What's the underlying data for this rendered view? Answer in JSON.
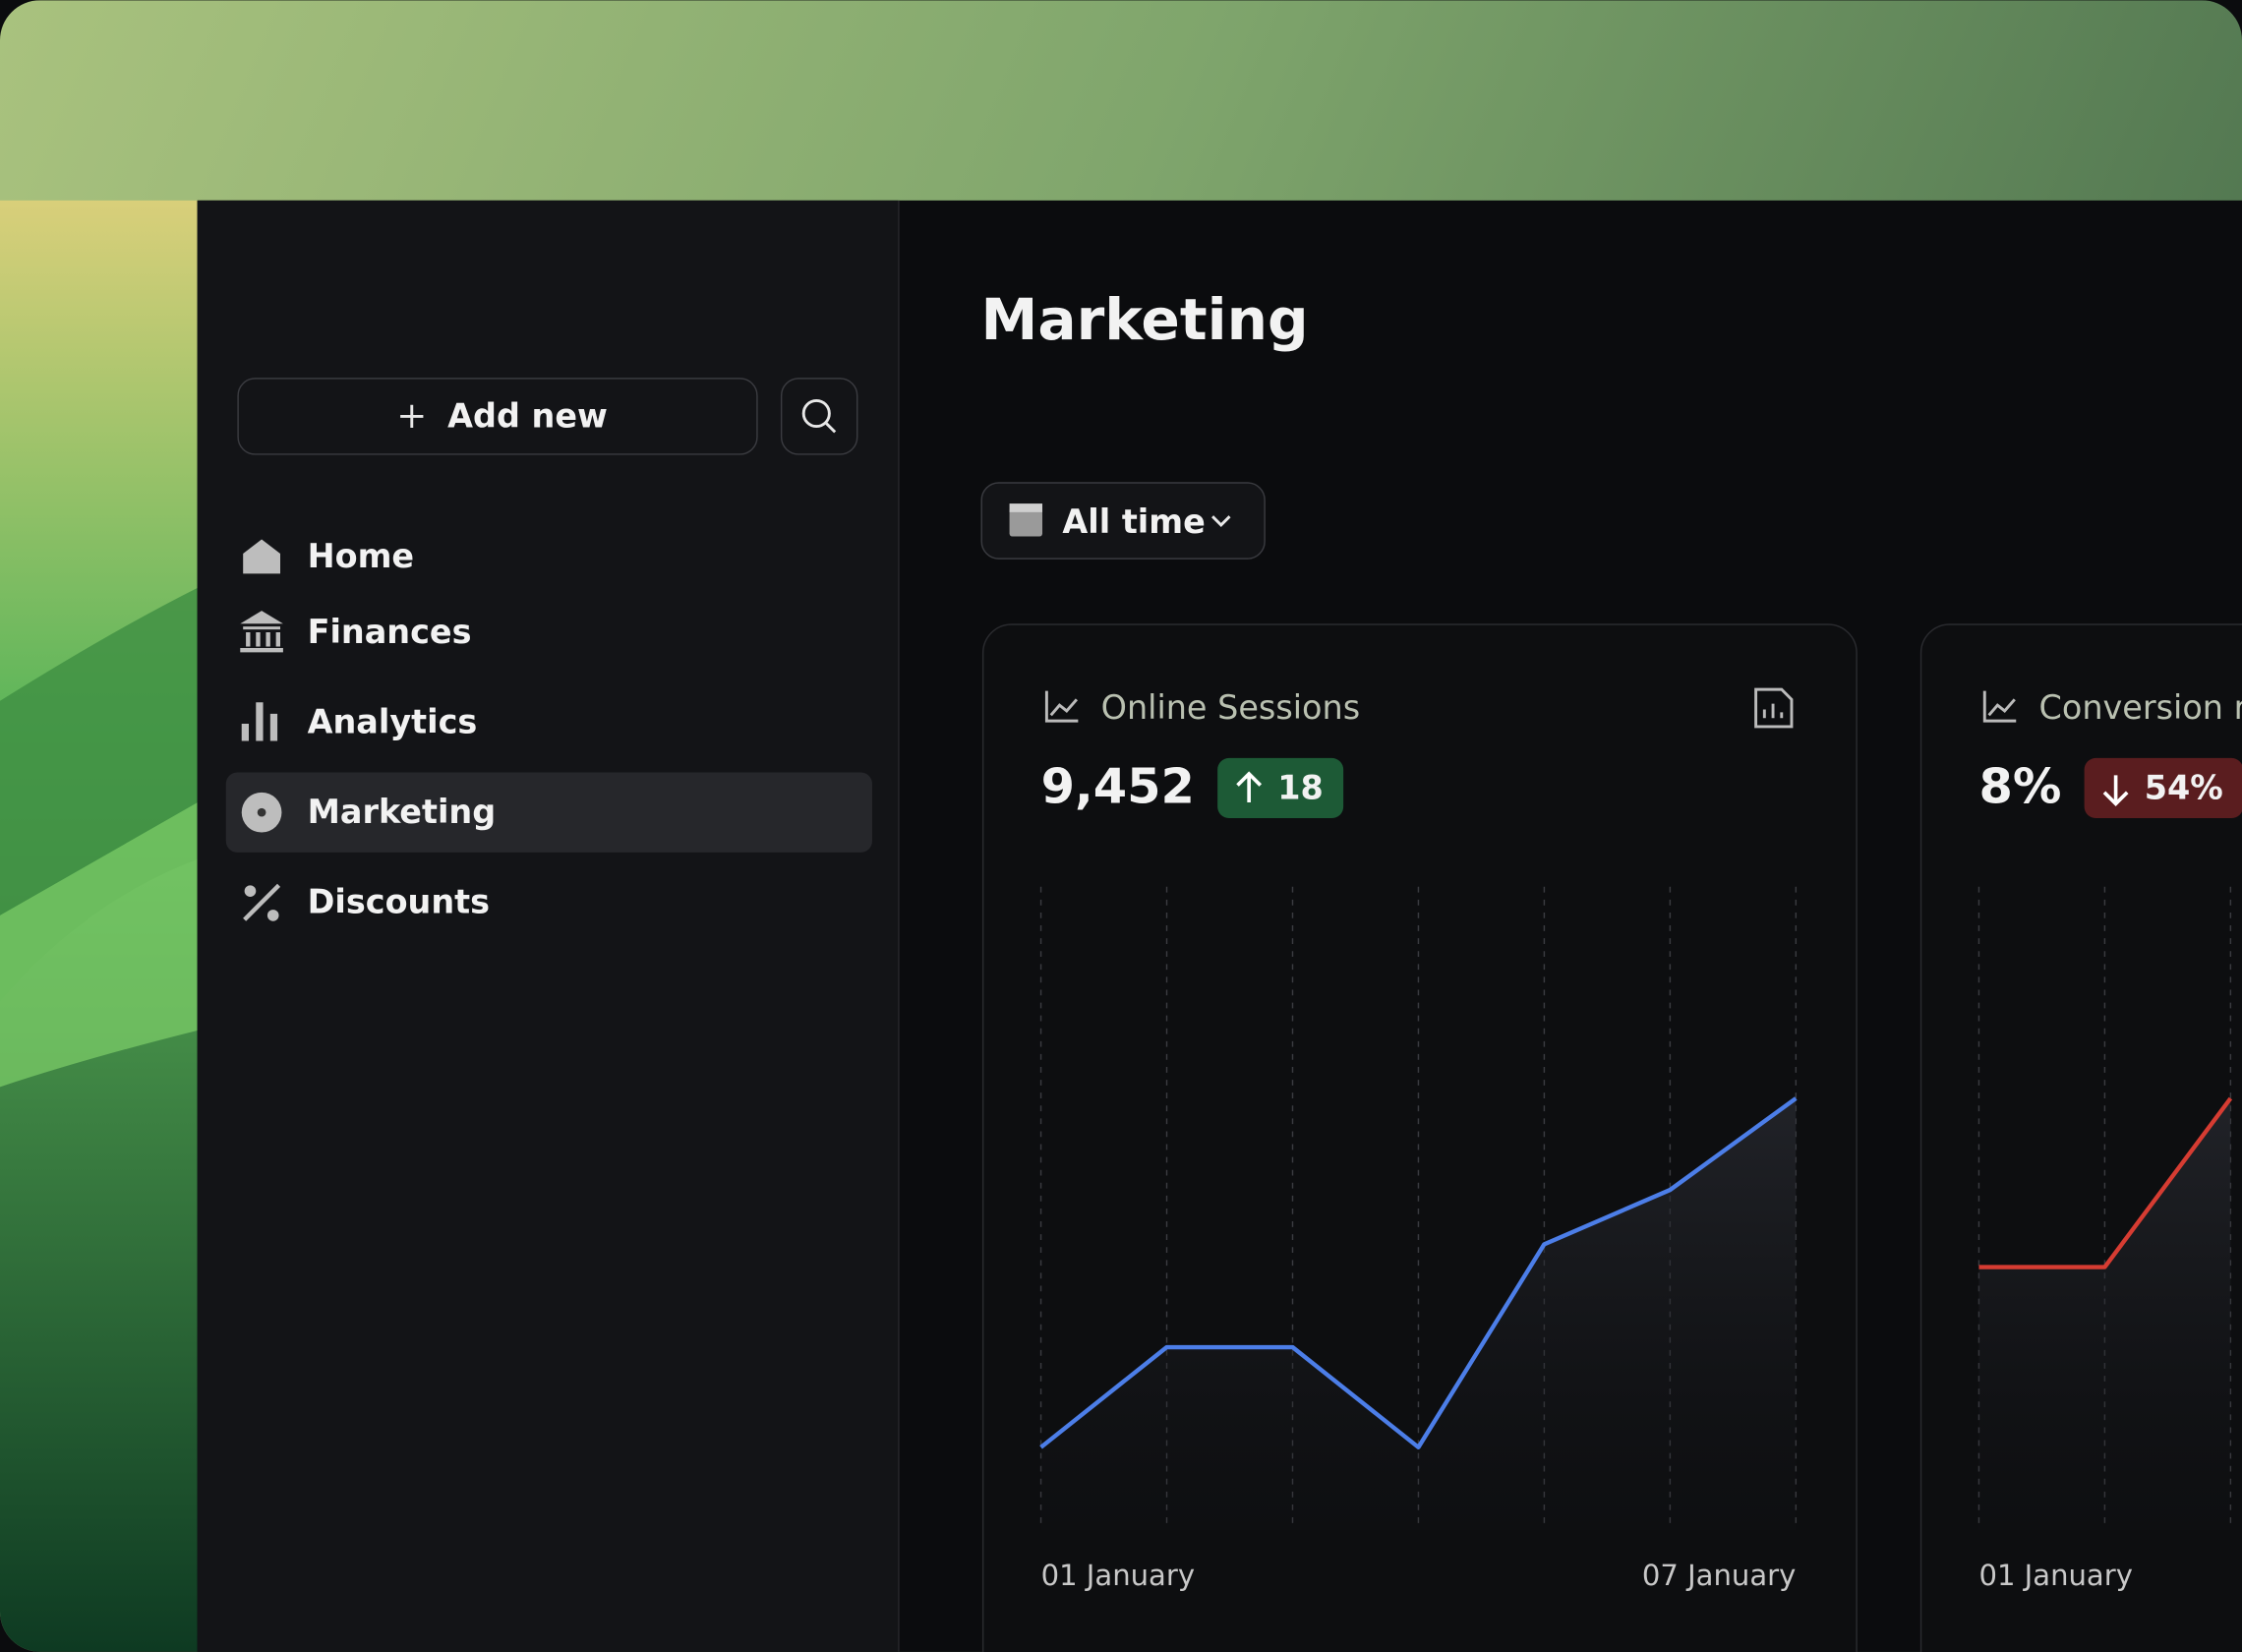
{
  "sidebar": {
    "add_button": "Add new",
    "nav": [
      "Home",
      "Finances",
      "Analytics",
      "Marketing",
      "Discounts"
    ],
    "active": "Marketing"
  },
  "header": {
    "title": "Marketing"
  },
  "filter": {
    "label": "All time"
  },
  "cards": [
    {
      "title": "Online Sessions",
      "value": "9,452",
      "change": "18",
      "direction": "up",
      "color": "#4c7ee8",
      "chart": {
        "values": [
          58,
          128,
          128,
          58,
          200,
          238,
          302
        ]
      },
      "x_labels": [
        "01 January",
        "07 January"
      ]
    },
    {
      "title": "Conversion rate",
      "value": "8%",
      "change": "54%",
      "direction": "down",
      "color": "#d63c32",
      "chart": {
        "values": [
          184,
          184,
          302
        ]
      },
      "x_labels": [
        "01 January"
      ]
    }
  ]
}
